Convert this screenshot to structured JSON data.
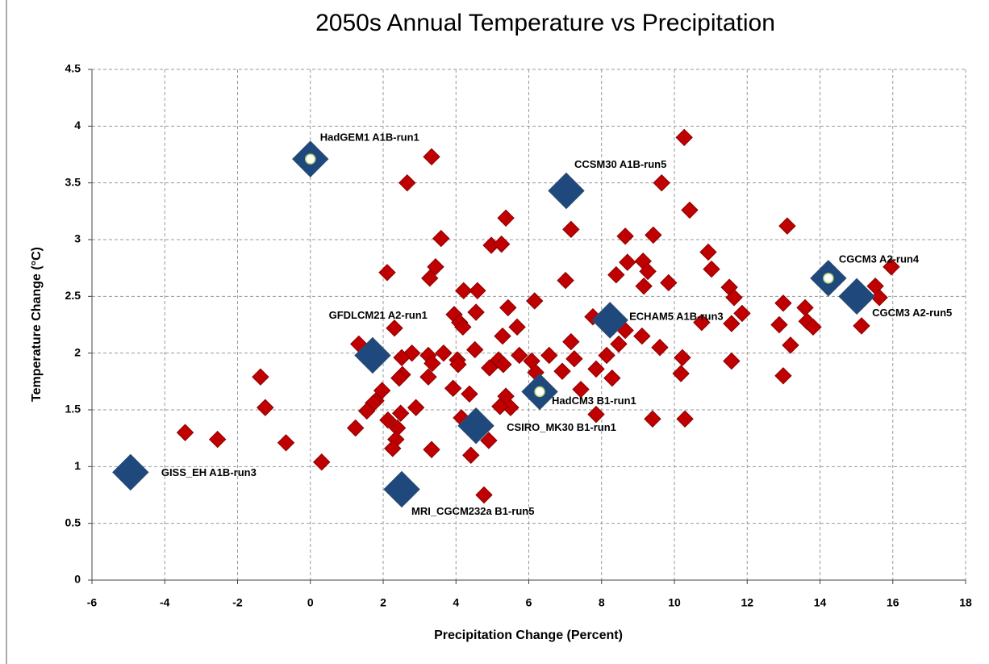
{
  "chart_data": {
    "type": "scatter",
    "title": "2050s Annual Temperature vs Precipitation",
    "x_label": "Precipitation Change  (Percent)",
    "y_label": "Temperature Change (°C)",
    "xlim": [
      -6,
      18
    ],
    "xticks": [
      -6,
      -4,
      -2,
      0,
      2,
      4,
      6,
      8,
      10,
      12,
      14,
      16,
      18
    ],
    "ylim": [
      0,
      4.5
    ],
    "yticks": [
      0,
      0.5,
      1,
      1.5,
      2,
      2.5,
      3,
      3.5,
      4,
      4.5
    ],
    "grid": true,
    "series": [
      {
        "color": "#c00000",
        "marker": "diamond",
        "x": [
          10.27,
          3.33,
          2.66,
          9.65,
          10.42,
          5.37,
          13.1,
          7.16,
          3.59,
          8.65,
          9.42,
          4.97,
          5.25,
          10.93,
          9.14,
          8.71,
          3.44,
          11.02,
          9.27,
          2.11,
          3.28,
          8.4,
          7.01,
          15.96,
          9.84,
          9.16,
          11.51,
          4.21,
          4.59,
          15.52,
          15.63,
          6.16,
          11.64,
          12.99,
          13.59,
          5.43,
          4.55,
          7.76,
          3.95,
          4.1,
          11.86,
          13.64,
          13.81,
          12.88,
          10.75,
          11.57,
          2.31,
          15.14,
          4.19,
          5.68,
          8.65,
          5.28,
          9.11,
          7.16,
          13.19,
          9.6,
          8.47,
          1.33,
          4.52,
          2.79,
          3.66,
          5.74,
          3.24,
          6.56,
          2.51,
          4.04,
          8.14,
          10.22,
          5.17,
          7.25,
          6.08,
          11.57,
          3.35,
          4.06,
          5.3,
          4.92,
          7.85,
          6.92,
          6.19,
          10.18,
          2.53,
          -1.37,
          3.24,
          2.44,
          12.99,
          8.29,
          7.43,
          1.97,
          4.37,
          3.92,
          1.8,
          5.37,
          1.73,
          -1.24,
          2.9,
          5.5,
          5.21,
          1.55,
          2.48,
          7.85,
          2.13,
          9.4,
          10.29,
          1.24,
          2.39,
          4.15,
          -3.44,
          -2.55,
          2.35,
          4.9,
          -0.67,
          2.26,
          3.33,
          4.41,
          0.31,
          4.77
        ],
        "values": [
          3.9,
          3.73,
          3.5,
          3.5,
          3.26,
          3.19,
          3.12,
          3.09,
          3.01,
          3.03,
          3.04,
          2.95,
          2.96,
          2.89,
          2.81,
          2.8,
          2.76,
          2.74,
          2.72,
          2.71,
          2.66,
          2.69,
          2.64,
          2.76,
          2.62,
          2.59,
          2.58,
          2.55,
          2.55,
          2.59,
          2.49,
          2.46,
          2.49,
          2.44,
          2.4,
          2.4,
          2.36,
          2.32,
          2.34,
          2.27,
          2.35,
          2.28,
          2.23,
          2.25,
          2.27,
          2.26,
          2.22,
          2.24,
          2.23,
          2.23,
          2.2,
          2.15,
          2.15,
          2.1,
          2.07,
          2.05,
          2.08,
          2.08,
          2.03,
          2.0,
          2.0,
          1.98,
          1.98,
          1.98,
          1.96,
          1.94,
          1.98,
          1.96,
          1.94,
          1.95,
          1.93,
          1.93,
          1.91,
          1.9,
          1.9,
          1.87,
          1.86,
          1.84,
          1.83,
          1.82,
          1.81,
          1.79,
          1.79,
          1.78,
          1.8,
          1.78,
          1.68,
          1.67,
          1.64,
          1.69,
          1.58,
          1.62,
          1.56,
          1.52,
          1.52,
          1.52,
          1.53,
          1.49,
          1.47,
          1.46,
          1.41,
          1.42,
          1.42,
          1.34,
          1.34,
          1.43,
          1.3,
          1.24,
          1.24,
          1.23,
          1.21,
          1.16,
          1.15,
          1.1,
          1.04,
          0.75
        ]
      },
      {
        "color": "#1f497d",
        "marker": "diamond-large",
        "x": [
          0.0,
          7.03,
          14.23,
          15.01,
          8.23,
          1.71,
          6.3,
          4.55,
          -4.94,
          2.51
        ],
        "values": [
          3.71,
          3.43,
          2.66,
          2.5,
          2.29,
          1.98,
          1.66,
          1.36,
          0.95,
          0.8
        ],
        "labels": [
          "HadGEM1  A1B-run1",
          "CCSM30 A1B-run5",
          "CGCM3 A2-run4",
          "CGCM3 A2-run5",
          "ECHAM5 A1B-run3",
          "GFDLCM21 A2-run1",
          "HadCM3 B1-run1",
          "CSIRO_MK30 B1-run1",
          "GISS_EH A1B-run3",
          "MRI_CGCM232a B1-run5"
        ],
        "inner_dot": [
          true,
          false,
          true,
          false,
          false,
          false,
          true,
          false,
          false,
          false
        ]
      }
    ]
  }
}
